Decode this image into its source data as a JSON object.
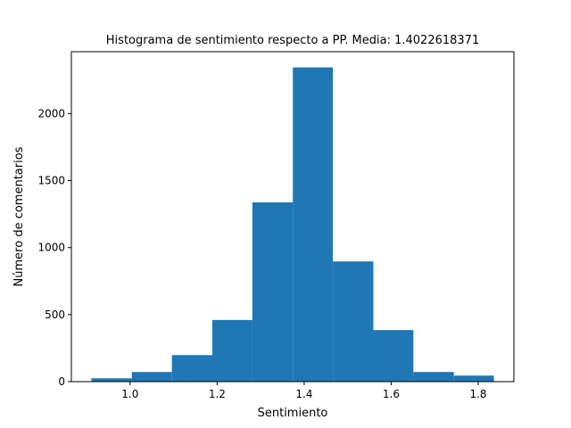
{
  "chart_data": {
    "type": "bar",
    "title": "Histograma de sentimiento respecto a PP. Media: 1.4022618371",
    "xlabel": "Sentimiento",
    "ylabel": "Número de comentarios",
    "bin_edges": [
      0.911,
      1.004,
      1.096,
      1.189,
      1.281,
      1.374,
      1.466,
      1.559,
      1.651,
      1.744,
      1.836
    ],
    "values": [
      25,
      72,
      198,
      460,
      1338,
      2345,
      897,
      385,
      72,
      45
    ],
    "xlim": [
      0.865,
      1.882
    ],
    "ylim": [
      0,
      2462
    ],
    "xticks": [
      1.0,
      1.2,
      1.4,
      1.6,
      1.8
    ],
    "xtick_labels": [
      "1.0",
      "1.2",
      "1.4",
      "1.6",
      "1.8"
    ],
    "yticks": [
      0,
      500,
      1000,
      1500,
      2000
    ],
    "ytick_labels": [
      "0",
      "500",
      "1000",
      "1500",
      "2000"
    ],
    "bar_color": "#1f77b4",
    "grid": false,
    "legend": "none"
  }
}
